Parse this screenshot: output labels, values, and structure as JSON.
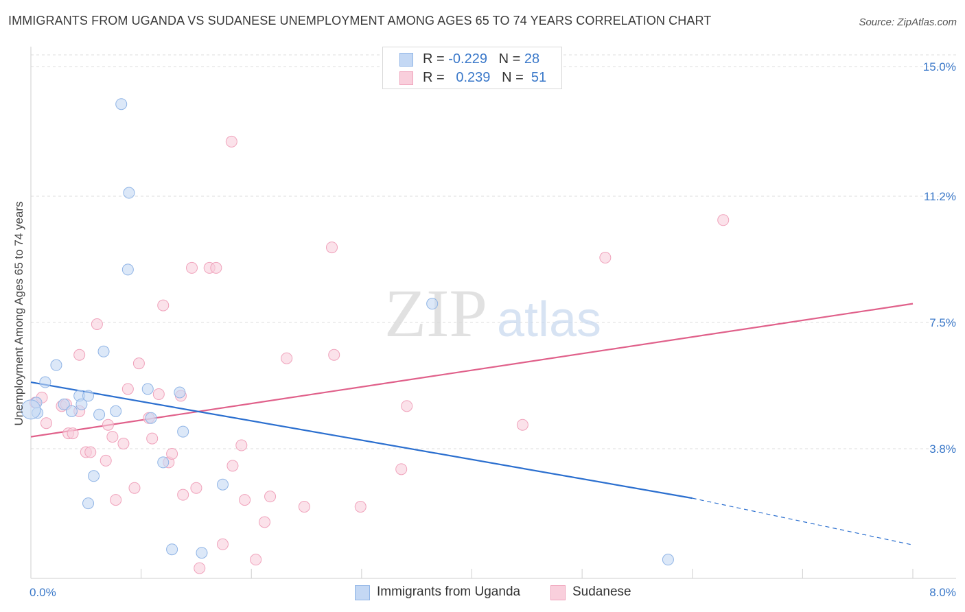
{
  "title": "IMMIGRANTS FROM UGANDA VS SUDANESE UNEMPLOYMENT AMONG AGES 65 TO 74 YEARS CORRELATION CHART",
  "source": "Source: ZipAtlas.com",
  "watermark": {
    "zip": "ZIP",
    "atlas": "atlas"
  },
  "legend": {
    "r_label": "R =",
    "n_label": "N =",
    "rows": [
      {
        "r": "-0.229",
        "n": "28"
      },
      {
        "r": "0.239",
        "n": "51"
      }
    ]
  },
  "colors": {
    "uganda_fill": "#c4d8f4",
    "uganda_stroke": "#8fb4e6",
    "uganda_line": "#2b6fcf",
    "sudanese_fill": "#f9cfdc",
    "sudanese_stroke": "#f0a2bb",
    "sudanese_line": "#e0608a",
    "tick_label": "#3a78c9",
    "grid": "#dddddd"
  },
  "chart_data": {
    "type": "scatter",
    "title": "IMMIGRANTS FROM UGANDA VS SUDANESE UNEMPLOYMENT AMONG AGES 65 TO 74 YEARS CORRELATION CHART",
    "xlabel": "",
    "ylabel": "Unemployment Among Ages 65 to 74 years",
    "xlim": [
      0,
      8
    ],
    "ylim": [
      0,
      15
    ],
    "x_tick_labels": [
      "0.0%",
      "8.0%"
    ],
    "y_ticks": [
      3.8,
      7.5,
      11.2,
      15.0
    ],
    "y_tick_labels": [
      "3.8%",
      "7.5%",
      "11.2%",
      "15.0%"
    ],
    "series": [
      {
        "name": "Immigrants from Uganda",
        "r": -0.229,
        "n": 28,
        "points": [
          [
            0.05,
            5.15
          ],
          [
            0.06,
            4.85
          ],
          [
            0.13,
            5.75
          ],
          [
            0.23,
            6.25
          ],
          [
            0.3,
            5.1
          ],
          [
            0.37,
            4.9
          ],
          [
            0.44,
            5.35
          ],
          [
            0.46,
            5.1
          ],
          [
            0.52,
            5.35
          ],
          [
            0.52,
            2.2
          ],
          [
            0.57,
            3.0
          ],
          [
            0.62,
            4.8
          ],
          [
            0.66,
            6.65
          ],
          [
            0.77,
            4.9
          ],
          [
            0.82,
            13.9
          ],
          [
            0.88,
            9.05
          ],
          [
            0.89,
            11.3
          ],
          [
            1.06,
            5.55
          ],
          [
            1.09,
            4.7
          ],
          [
            1.2,
            3.4
          ],
          [
            1.28,
            0.85
          ],
          [
            1.35,
            5.45
          ],
          [
            1.38,
            4.3
          ],
          [
            1.55,
            0.75
          ],
          [
            1.74,
            2.75
          ],
          [
            3.64,
            8.05
          ],
          [
            5.78,
            0.55
          ],
          [
            0.0,
            4.95
          ]
        ],
        "trend": {
          "x0": 0.0,
          "y0": 5.75,
          "x1": 6.0,
          "y1": 2.35,
          "dash_to_x": 8.0,
          "dash_to_y": 0.98
        }
      },
      {
        "name": "Sudanese",
        "r": 0.239,
        "n": 51,
        "points": [
          [
            0.04,
            5.15
          ],
          [
            0.1,
            5.3
          ],
          [
            0.14,
            4.55
          ],
          [
            0.28,
            5.05
          ],
          [
            0.32,
            5.1
          ],
          [
            0.34,
            4.25
          ],
          [
            0.38,
            4.25
          ],
          [
            0.44,
            4.9
          ],
          [
            0.44,
            6.55
          ],
          [
            0.5,
            3.7
          ],
          [
            0.54,
            3.7
          ],
          [
            0.6,
            7.45
          ],
          [
            0.68,
            3.45
          ],
          [
            0.7,
            4.5
          ],
          [
            0.74,
            4.15
          ],
          [
            0.77,
            2.3
          ],
          [
            0.84,
            3.95
          ],
          [
            0.88,
            5.55
          ],
          [
            0.94,
            2.65
          ],
          [
            0.98,
            6.3
          ],
          [
            1.07,
            4.7
          ],
          [
            1.1,
            4.1
          ],
          [
            1.16,
            5.4
          ],
          [
            1.2,
            8.0
          ],
          [
            1.25,
            3.4
          ],
          [
            1.28,
            3.65
          ],
          [
            1.36,
            5.35
          ],
          [
            1.38,
            2.45
          ],
          [
            1.46,
            9.1
          ],
          [
            1.5,
            2.65
          ],
          [
            1.53,
            0.3
          ],
          [
            1.62,
            9.1
          ],
          [
            1.68,
            9.1
          ],
          [
            1.74,
            1.0
          ],
          [
            1.82,
            12.8
          ],
          [
            1.83,
            3.3
          ],
          [
            1.91,
            3.9
          ],
          [
            1.94,
            2.3
          ],
          [
            2.04,
            0.55
          ],
          [
            2.12,
            1.65
          ],
          [
            2.17,
            2.4
          ],
          [
            2.32,
            6.45
          ],
          [
            2.48,
            2.1
          ],
          [
            2.73,
            9.7
          ],
          [
            2.75,
            6.55
          ],
          [
            2.99,
            2.1
          ],
          [
            3.36,
            3.2
          ],
          [
            3.41,
            5.05
          ],
          [
            4.46,
            4.5
          ],
          [
            5.21,
            9.4
          ],
          [
            6.28,
            10.5
          ]
        ],
        "trend": {
          "x0": 0.0,
          "y0": 4.15,
          "x1": 8.0,
          "y1": 8.05
        }
      }
    ]
  }
}
